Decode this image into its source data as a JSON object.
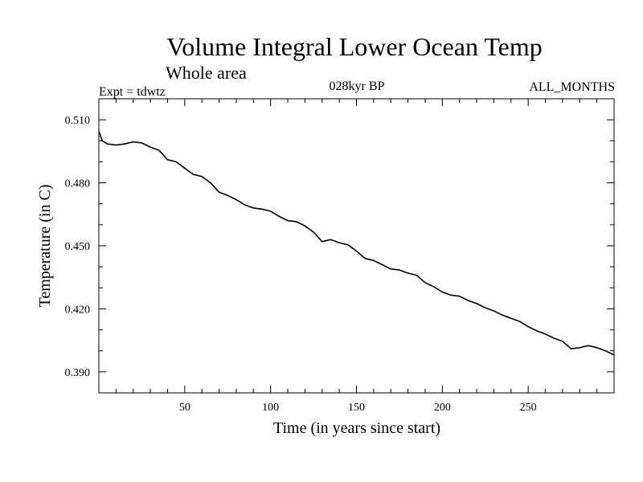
{
  "chart_data": {
    "type": "line",
    "title": "Volume Integral Lower Ocean Temp",
    "subtitle": "Whole area",
    "header_left": "Expt = tdwtz",
    "header_center": "028kyr BP",
    "header_right": "ALL_MONTHS",
    "xlabel": "Time (in years since start)",
    "ylabel": "Temperature (in C)",
    "xlim": [
      0,
      300
    ],
    "ylim": [
      0.38,
      0.52
    ],
    "xticks": [
      50,
      100,
      150,
      200,
      250
    ],
    "xtick_labels": [
      "50",
      "100",
      "150",
      "200",
      "250"
    ],
    "yticks": [
      0.39,
      0.42,
      0.45,
      0.48,
      0.51
    ],
    "ytick_labels": [
      "0.390",
      "0.420",
      "0.450",
      "0.480",
      "0.510"
    ],
    "grid": false,
    "series": [
      {
        "name": "Volume Integral Lower Ocean Temp",
        "x": [
          0,
          2,
          5,
          10,
          15,
          20,
          25,
          30,
          35,
          40,
          45,
          50,
          55,
          60,
          65,
          70,
          75,
          80,
          85,
          90,
          95,
          100,
          105,
          110,
          115,
          120,
          125,
          130,
          135,
          140,
          145,
          150,
          155,
          160,
          165,
          170,
          175,
          180,
          185,
          190,
          195,
          200,
          205,
          210,
          215,
          220,
          225,
          230,
          235,
          240,
          245,
          250,
          255,
          260,
          265,
          270,
          275,
          280,
          285,
          290,
          295,
          300
        ],
        "values": [
          0.5045,
          0.5,
          0.4985,
          0.498,
          0.4985,
          0.4995,
          0.499,
          0.497,
          0.4955,
          0.491,
          0.49,
          0.487,
          0.484,
          0.483,
          0.48,
          0.4755,
          0.474,
          0.472,
          0.4695,
          0.468,
          0.4675,
          0.4665,
          0.464,
          0.462,
          0.4615,
          0.4595,
          0.4565,
          0.452,
          0.453,
          0.4515,
          0.4505,
          0.4475,
          0.444,
          0.443,
          0.441,
          0.439,
          0.4385,
          0.437,
          0.436,
          0.4325,
          0.4305,
          0.428,
          0.4265,
          0.426,
          0.424,
          0.4225,
          0.4205,
          0.419,
          0.417,
          0.4155,
          0.414,
          0.4115,
          0.4095,
          0.408,
          0.406,
          0.4045,
          0.401,
          0.4015,
          0.4025,
          0.4015,
          0.4,
          0.398
        ]
      }
    ]
  }
}
